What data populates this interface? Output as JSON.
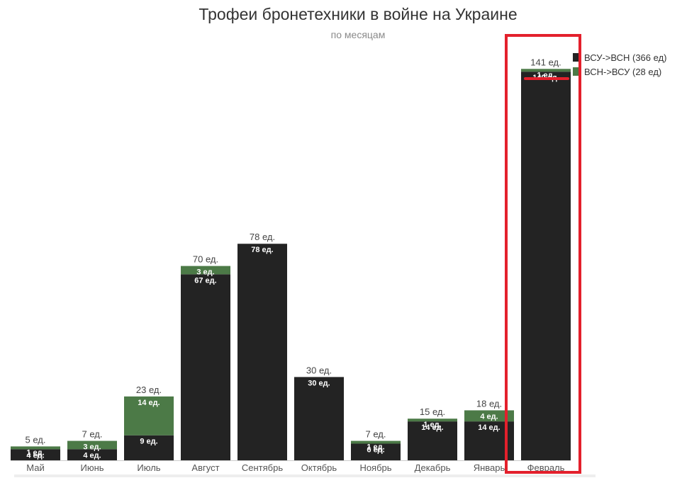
{
  "title": "Трофеи бронетехники в войне на Украине",
  "subtitle": "по месяцам",
  "colors": {
    "vsu_to_vsn": "#232323",
    "vsn_to_vsu": "#4c7a47",
    "highlight": "#e3202c"
  },
  "legend": [
    {
      "label": "ВСУ->ВСН (366 ед)",
      "color": "#232323"
    },
    {
      "label": "ВСН->ВСУ (28 ед)",
      "color": "#4c7a47"
    }
  ],
  "chart_data": {
    "type": "bar",
    "stacked": true,
    "title": "Трофеи бронетехники в войне на Украине",
    "subtitle": "по месяцам",
    "categories": [
      "Май",
      "Июнь",
      "Июль",
      "Август",
      "Сентябрь",
      "Октябрь",
      "Ноябрь",
      "Декабрь",
      "Январь",
      "Февраль"
    ],
    "series": [
      {
        "name": "ВСУ->ВСН (366 ед)",
        "values": [
          4,
          4,
          9,
          67,
          78,
          30,
          6,
          14,
          14,
          140
        ]
      },
      {
        "name": "ВСН->ВСУ (28 ед)",
        "values": [
          1,
          3,
          14,
          3,
          0,
          0,
          1,
          1,
          4,
          1
        ]
      }
    ],
    "totals": [
      5,
      7,
      23,
      70,
      78,
      30,
      7,
      15,
      18,
      141
    ],
    "unit": "ед.",
    "legend_position": "top-right",
    "highlighted_category": "Февраль",
    "grid": false
  }
}
